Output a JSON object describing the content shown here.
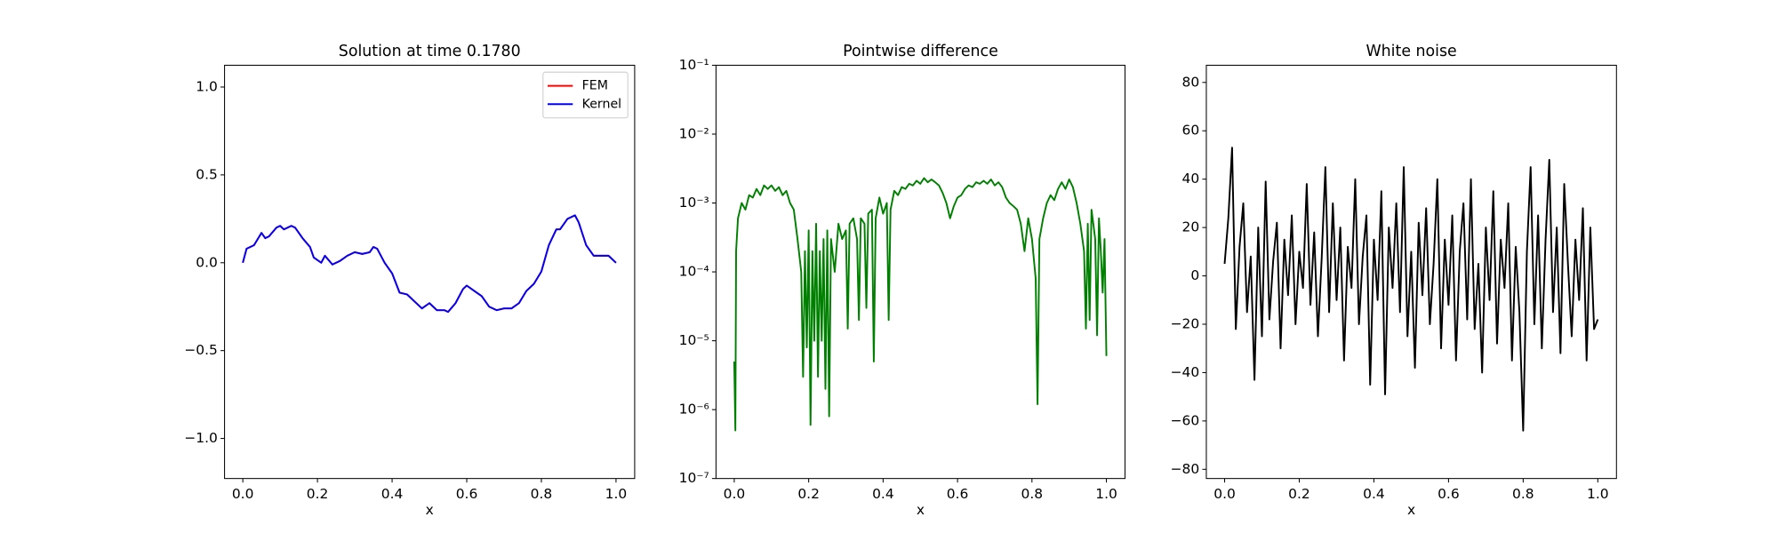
{
  "chart_data": [
    {
      "type": "line",
      "title": "Solution at time 0.1780",
      "x_label": "x",
      "legend": "upper right",
      "x": [
        0,
        0.01,
        0.03,
        0.05,
        0.06,
        0.07,
        0.09,
        0.1,
        0.11,
        0.13,
        0.14,
        0.16,
        0.18,
        0.19,
        0.21,
        0.22,
        0.24,
        0.26,
        0.28,
        0.3,
        0.32,
        0.34,
        0.35,
        0.36,
        0.38,
        0.4,
        0.42,
        0.44,
        0.46,
        0.48,
        0.5,
        0.52,
        0.54,
        0.55,
        0.57,
        0.59,
        0.6,
        0.62,
        0.64,
        0.66,
        0.68,
        0.7,
        0.72,
        0.74,
        0.76,
        0.78,
        0.8,
        0.82,
        0.84,
        0.85,
        0.87,
        0.89,
        0.9,
        0.92,
        0.94,
        0.96,
        0.98,
        1.0
      ],
      "series": [
        {
          "name": "FEM",
          "color": "#ff0000",
          "values": [
            0,
            0.08,
            0.1,
            0.17,
            0.14,
            0.15,
            0.2,
            0.21,
            0.19,
            0.21,
            0.2,
            0.14,
            0.09,
            0.03,
            0.0,
            0.04,
            -0.01,
            0.01,
            0.04,
            0.06,
            0.05,
            0.06,
            0.09,
            0.08,
            0.0,
            -0.06,
            -0.17,
            -0.18,
            -0.22,
            -0.26,
            -0.23,
            -0.27,
            -0.27,
            -0.28,
            -0.23,
            -0.15,
            -0.13,
            -0.16,
            -0.19,
            -0.25,
            -0.27,
            -0.26,
            -0.26,
            -0.23,
            -0.16,
            -0.12,
            -0.05,
            0.1,
            0.19,
            0.19,
            0.25,
            0.27,
            0.23,
            0.1,
            0.04,
            0.04,
            0.04,
            0.0
          ]
        },
        {
          "name": "Kernel",
          "color": "#0000ff",
          "values": [
            0,
            0.08,
            0.1,
            0.17,
            0.14,
            0.15,
            0.2,
            0.21,
            0.19,
            0.21,
            0.2,
            0.14,
            0.09,
            0.03,
            0.0,
            0.04,
            -0.01,
            0.01,
            0.04,
            0.06,
            0.05,
            0.06,
            0.09,
            0.08,
            0.0,
            -0.06,
            -0.17,
            -0.18,
            -0.22,
            -0.26,
            -0.23,
            -0.27,
            -0.27,
            -0.28,
            -0.23,
            -0.15,
            -0.13,
            -0.16,
            -0.19,
            -0.25,
            -0.27,
            -0.26,
            -0.26,
            -0.23,
            -0.16,
            -0.12,
            -0.05,
            0.1,
            0.19,
            0.19,
            0.25,
            0.27,
            0.23,
            0.1,
            0.04,
            0.04,
            0.04,
            0.0
          ]
        }
      ],
      "xlim": [
        -0.049,
        1.05
      ],
      "xticks": [
        {
          "value": 0,
          "label": "0.0"
        },
        0.2,
        0.4,
        0.6,
        0.8,
        {
          "value": 1,
          "label": "1.0"
        }
      ],
      "ylim": [
        -1.228,
        1.124
      ],
      "yticks": [
        {
          "value": -1,
          "label": "−1.0"
        },
        {
          "value": -0.5,
          "label": "−0.5"
        },
        {
          "value": 0,
          "label": "0.0"
        },
        0.5,
        {
          "value": 1,
          "label": "1.0"
        }
      ]
    },
    {
      "type": "line",
      "title": "Pointwise difference",
      "x_label": "x",
      "yscale": "log",
      "x": [
        0.0,
        0.003,
        0.005,
        0.01,
        0.02,
        0.03,
        0.04,
        0.05,
        0.06,
        0.07,
        0.08,
        0.09,
        0.1,
        0.11,
        0.12,
        0.13,
        0.14,
        0.15,
        0.16,
        0.17,
        0.18,
        0.185,
        0.19,
        0.195,
        0.2,
        0.205,
        0.21,
        0.215,
        0.22,
        0.225,
        0.23,
        0.235,
        0.24,
        0.245,
        0.25,
        0.255,
        0.26,
        0.27,
        0.28,
        0.29,
        0.3,
        0.305,
        0.31,
        0.32,
        0.33,
        0.335,
        0.34,
        0.35,
        0.355,
        0.36,
        0.37,
        0.375,
        0.38,
        0.39,
        0.4,
        0.41,
        0.415,
        0.42,
        0.43,
        0.44,
        0.45,
        0.46,
        0.47,
        0.48,
        0.49,
        0.5,
        0.51,
        0.52,
        0.53,
        0.54,
        0.55,
        0.56,
        0.57,
        0.58,
        0.59,
        0.6,
        0.61,
        0.62,
        0.63,
        0.64,
        0.65,
        0.66,
        0.67,
        0.68,
        0.69,
        0.7,
        0.71,
        0.72,
        0.73,
        0.74,
        0.75,
        0.76,
        0.77,
        0.78,
        0.79,
        0.8,
        0.81,
        0.815,
        0.82,
        0.83,
        0.84,
        0.85,
        0.86,
        0.87,
        0.88,
        0.89,
        0.9,
        0.91,
        0.92,
        0.93,
        0.94,
        0.945,
        0.95,
        0.955,
        0.96,
        0.97,
        0.975,
        0.98,
        0.985,
        0.99,
        0.995,
        1.0
      ],
      "series": [
        {
          "color": "#008000",
          "values": [
            5e-06,
            5e-07,
            0.0002,
            0.0006,
            0.001,
            0.0008,
            0.0013,
            0.0012,
            0.0016,
            0.0013,
            0.0018,
            0.0016,
            0.0018,
            0.0015,
            0.0017,
            0.0013,
            0.0015,
            0.001,
            0.0008,
            0.0003,
            0.0001,
            3e-06,
            0.0002,
            8e-06,
            0.0004,
            6e-07,
            0.0002,
            1e-05,
            0.0005,
            3e-06,
            0.0002,
            1e-05,
            0.0003,
            2e-06,
            0.0004,
            8e-07,
            0.0003,
            0.0001,
            0.0005,
            0.0003,
            0.0004,
            1.5e-05,
            0.0005,
            0.0006,
            0.0003,
            2e-05,
            0.0006,
            0.0005,
            3e-05,
            0.0007,
            0.0008,
            5e-06,
            0.0006,
            0.0012,
            0.0007,
            0.001,
            2e-05,
            0.0008,
            0.0015,
            0.0013,
            0.0017,
            0.0016,
            0.0019,
            0.0018,
            0.0021,
            0.0019,
            0.0023,
            0.002,
            0.0022,
            0.002,
            0.0018,
            0.0014,
            0.001,
            0.0006,
            0.0009,
            0.0012,
            0.0013,
            0.0016,
            0.0018,
            0.0017,
            0.002,
            0.0019,
            0.0021,
            0.0019,
            0.0022,
            0.0018,
            0.002,
            0.0017,
            0.0012,
            0.001,
            0.0009,
            0.0008,
            0.0005,
            0.0002,
            0.0006,
            0.0003,
            8e-05,
            1.2e-06,
            0.0003,
            0.0006,
            0.001,
            0.0013,
            0.0011,
            0.0016,
            0.002,
            0.0016,
            0.0022,
            0.0017,
            0.001,
            0.0005,
            0.0002,
            1.5e-05,
            0.0005,
            2e-05,
            0.0008,
            0.0003,
            1.2e-05,
            0.0006,
            0.0002,
            5e-05,
            0.0003,
            6e-06
          ]
        }
      ],
      "xlim": [
        -0.049,
        1.05
      ],
      "xticks": [
        {
          "value": 0,
          "label": "0.0"
        },
        0.2,
        0.4,
        0.6,
        0.8,
        {
          "value": 1,
          "label": "1.0"
        }
      ],
      "ylim": [
        1e-07,
        0.1
      ],
      "yticks": [
        {
          "value": 1e-07,
          "label": "10⁻⁷"
        },
        {
          "value": 1e-06,
          "label": "10⁻⁶"
        },
        {
          "value": 1e-05,
          "label": "10⁻⁵"
        },
        {
          "value": 0.0001,
          "label": "10⁻⁴"
        },
        {
          "value": 0.001,
          "label": "10⁻³"
        },
        {
          "value": 0.01,
          "label": "10⁻²"
        },
        {
          "value": 0.1,
          "label": "10⁻¹"
        }
      ]
    },
    {
      "type": "line",
      "title": "White noise",
      "x_label": "x",
      "x": [
        0,
        0.01,
        0.02,
        0.03,
        0.04,
        0.05,
        0.06,
        0.07,
        0.08,
        0.09,
        0.1,
        0.11,
        0.12,
        0.13,
        0.14,
        0.15,
        0.16,
        0.17,
        0.18,
        0.19,
        0.2,
        0.21,
        0.22,
        0.23,
        0.24,
        0.25,
        0.26,
        0.27,
        0.28,
        0.29,
        0.3,
        0.31,
        0.32,
        0.33,
        0.34,
        0.35,
        0.36,
        0.37,
        0.38,
        0.39,
        0.4,
        0.41,
        0.42,
        0.43,
        0.44,
        0.45,
        0.46,
        0.47,
        0.48,
        0.49,
        0.5,
        0.51,
        0.52,
        0.53,
        0.54,
        0.55,
        0.56,
        0.57,
        0.58,
        0.59,
        0.6,
        0.61,
        0.62,
        0.63,
        0.64,
        0.65,
        0.66,
        0.67,
        0.68,
        0.69,
        0.7,
        0.71,
        0.72,
        0.73,
        0.74,
        0.75,
        0.76,
        0.77,
        0.78,
        0.79,
        0.8,
        0.81,
        0.82,
        0.83,
        0.84,
        0.85,
        0.86,
        0.87,
        0.88,
        0.89,
        0.9,
        0.91,
        0.92,
        0.93,
        0.94,
        0.95,
        0.96,
        0.97,
        0.98,
        0.99,
        1.0
      ],
      "series": [
        {
          "color": "#000000",
          "values": [
            5,
            24,
            53,
            -22,
            12,
            30,
            -15,
            8,
            -43,
            20,
            -25,
            39,
            -18,
            6,
            22,
            -30,
            15,
            -8,
            25,
            -20,
            10,
            -5,
            38,
            -12,
            18,
            -25,
            7,
            45,
            -15,
            30,
            -10,
            20,
            -35,
            12,
            -5,
            40,
            -20,
            8,
            25,
            -45,
            15,
            -10,
            35,
            -49,
            20,
            -5,
            30,
            -15,
            45,
            -25,
            10,
            -38,
            22,
            -8,
            28,
            -20,
            5,
            40,
            -30,
            15,
            -12,
            25,
            -35,
            10,
            30,
            -18,
            40,
            -22,
            5,
            -40,
            20,
            -10,
            35,
            -28,
            15,
            -5,
            30,
            -35,
            12,
            -15,
            -64,
            10,
            45,
            -20,
            25,
            -30,
            15,
            48,
            -15,
            20,
            -32,
            38,
            5,
            -25,
            15,
            -10,
            28,
            -35,
            20,
            -22,
            -18
          ]
        }
      ],
      "xlim": [
        -0.049,
        1.05
      ],
      "xticks": [
        {
          "value": 0,
          "label": "0.0"
        },
        0.2,
        0.4,
        0.6,
        0.8,
        {
          "value": 1,
          "label": "1.0"
        }
      ],
      "ylim": [
        -83.8,
        87.1
      ],
      "yticks": [
        {
          "value": -80,
          "label": "−80"
        },
        {
          "value": -60,
          "label": "−60"
        },
        {
          "value": -40,
          "label": "−40"
        },
        {
          "value": -20,
          "label": "−20"
        },
        0,
        20,
        40,
        60,
        80
      ]
    }
  ]
}
